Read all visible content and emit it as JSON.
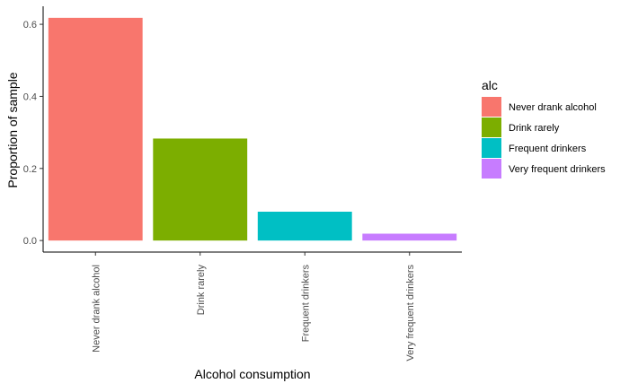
{
  "chart_data": {
    "type": "bar",
    "title": "",
    "xlabel": "Alcohol consumption",
    "ylabel": "Proportion of sample",
    "categories": [
      "Never drank alcohol",
      "Drink rarely",
      "Frequent drinkers",
      "Very frequent drinkers"
    ],
    "values": [
      0.618,
      0.283,
      0.08,
      0.019
    ],
    "colors": [
      "#F8766D",
      "#7CAE00",
      "#00BFC4",
      "#C77CFF"
    ],
    "ylim": [
      -0.032,
      0.65
    ],
    "yticks": [
      0.0,
      0.2,
      0.4,
      0.6
    ],
    "ytick_labels": [
      "0.0",
      "0.2",
      "0.4",
      "0.6"
    ],
    "grid": false,
    "legend": {
      "title": "alc",
      "position": "right",
      "entries": [
        "Never drank alcohol",
        "Drink rarely",
        "Frequent drinkers",
        "Very frequent drinkers"
      ]
    }
  }
}
